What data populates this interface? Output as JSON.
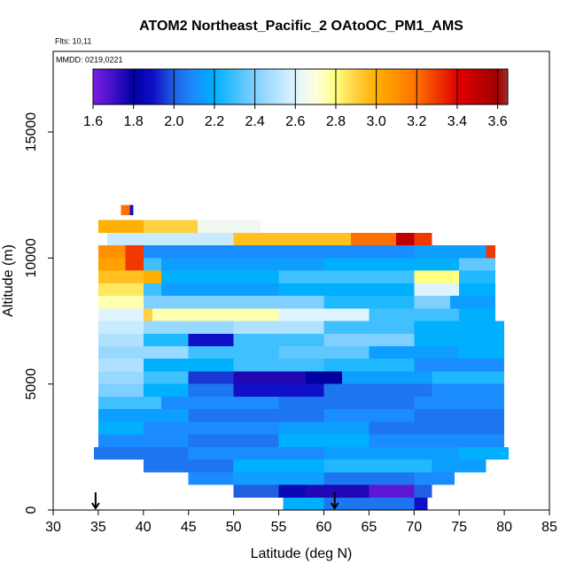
{
  "chart_data": {
    "type": "curtain",
    "title": "ATOM2 Northeast_Pacific_2 OAtoOC_PM1_AMS",
    "flights": "Flts: 10,11",
    "dates": "MMDD: 0219,0221",
    "xlabel": "Latitude (deg N)",
    "ylabel": "Altitude (m)",
    "xlim": [
      30,
      85
    ],
    "ylim": [
      0,
      18200
    ],
    "xticks": [
      30,
      35,
      40,
      45,
      50,
      55,
      60,
      65,
      70,
      75,
      80,
      85
    ],
    "yticks": [
      0,
      5000,
      10000,
      15000
    ],
    "colorbar": {
      "lim": [
        1.6,
        3.65
      ],
      "ticks": [
        1.6,
        1.8,
        {
          "value": 2,
          "label": "2.0"
        },
        2.2,
        2.4,
        2.6,
        2.8,
        {
          "value": 3,
          "label": "3.0"
        },
        3.2,
        3.4,
        3.6
      ],
      "scale": [
        [
          1.6,
          "#7b1fe0"
        ],
        [
          1.7,
          "#4010c8"
        ],
        [
          1.8,
          "#0000a0"
        ],
        [
          1.9,
          "#1010c8"
        ],
        [
          2.0,
          "#2060e0"
        ],
        [
          2.1,
          "#1a8cff"
        ],
        [
          2.2,
          "#00b0ff"
        ],
        [
          2.4,
          "#80d0ff"
        ],
        [
          2.6,
          "#e0f4ff"
        ],
        [
          2.7,
          "#ffffe0"
        ],
        [
          2.8,
          "#ffff80"
        ],
        [
          2.9,
          "#ffd040"
        ],
        [
          3.0,
          "#ffb000"
        ],
        [
          3.2,
          "#ff7000"
        ],
        [
          3.4,
          "#e00000"
        ],
        [
          3.6,
          "#a00000"
        ],
        [
          3.65,
          "#a03030"
        ]
      ]
    },
    "layers": [
      {
        "alt": [
          0,
          500
        ],
        "segments": [
          [
            55.5,
            60,
            2.2
          ],
          [
            60,
            70,
            2.05
          ],
          [
            70,
            71.5,
            1.9
          ]
        ]
      },
      {
        "alt": [
          500,
          1000
        ],
        "segments": [
          [
            50,
            55,
            2.0
          ],
          [
            55,
            58,
            1.85
          ],
          [
            58,
            65,
            1.75
          ],
          [
            65,
            70,
            1.65
          ],
          [
            70,
            72,
            2.0
          ]
        ]
      },
      {
        "alt": [
          1000,
          1500
        ],
        "segments": [
          [
            45,
            50,
            2.1
          ],
          [
            50,
            60,
            2.15
          ],
          [
            60,
            70,
            2.05
          ],
          [
            70,
            74.5,
            2.1
          ]
        ]
      },
      {
        "alt": [
          1500,
          2000
        ],
        "segments": [
          [
            40,
            50,
            2.05
          ],
          [
            50,
            60,
            2.2
          ],
          [
            60,
            72,
            2.25
          ],
          [
            72,
            78,
            2.15
          ]
        ]
      },
      {
        "alt": [
          2000,
          2500
        ],
        "segments": [
          [
            34.5,
            45,
            2.05
          ],
          [
            45,
            60,
            2.1
          ],
          [
            60,
            75,
            2.15
          ],
          [
            75,
            80.5,
            2.2
          ]
        ]
      },
      {
        "alt": [
          2500,
          3000
        ],
        "segments": [
          [
            35,
            45,
            2.1
          ],
          [
            45,
            55,
            2.05
          ],
          [
            55,
            65,
            2.2
          ],
          [
            65,
            80,
            2.1
          ]
        ]
      },
      {
        "alt": [
          3000,
          3500
        ],
        "segments": [
          [
            35,
            40,
            2.2
          ],
          [
            40,
            55,
            2.1
          ],
          [
            55,
            65,
            2.15
          ],
          [
            65,
            80,
            2.05
          ]
        ]
      },
      {
        "alt": [
          3500,
          4000
        ],
        "segments": [
          [
            35,
            45,
            2.15
          ],
          [
            45,
            60,
            2.05
          ],
          [
            60,
            70,
            2.1
          ],
          [
            70,
            80,
            2.05
          ]
        ]
      },
      {
        "alt": [
          4000,
          4500
        ],
        "segments": [
          [
            35,
            42,
            2.3
          ],
          [
            42,
            55,
            2.1
          ],
          [
            55,
            70,
            2.05
          ],
          [
            70,
            80,
            2.1
          ]
        ]
      },
      {
        "alt": [
          4500,
          5000
        ],
        "segments": [
          [
            35,
            40,
            2.4
          ],
          [
            40,
            45,
            2.2
          ],
          [
            45,
            50,
            2.05
          ],
          [
            50,
            60,
            1.9
          ],
          [
            60,
            72,
            2.05
          ],
          [
            72,
            80,
            2.1
          ]
        ]
      },
      {
        "alt": [
          5000,
          5500
        ],
        "segments": [
          [
            35,
            40,
            2.45
          ],
          [
            40,
            45,
            2.3
          ],
          [
            45,
            50,
            1.95
          ],
          [
            50,
            58,
            1.75
          ],
          [
            58,
            62,
            1.8
          ],
          [
            62,
            72,
            2.15
          ],
          [
            72,
            80,
            2.25
          ]
        ]
      },
      {
        "alt": [
          5500,
          6000
        ],
        "segments": [
          [
            35,
            40,
            2.5
          ],
          [
            40,
            50,
            2.2
          ],
          [
            50,
            60,
            2.3
          ],
          [
            60,
            70,
            2.25
          ],
          [
            70,
            80,
            2.1
          ]
        ]
      },
      {
        "alt": [
          6000,
          6500
        ],
        "segments": [
          [
            35,
            45,
            2.45
          ],
          [
            45,
            55,
            2.3
          ],
          [
            55,
            65,
            2.35
          ],
          [
            65,
            75,
            2.15
          ],
          [
            75,
            80,
            2.2
          ]
        ]
      },
      {
        "alt": [
          6500,
          7000
        ],
        "segments": [
          [
            35,
            40,
            2.5
          ],
          [
            40,
            45,
            2.25
          ],
          [
            45,
            50,
            1.9
          ],
          [
            50,
            60,
            2.3
          ],
          [
            60,
            70,
            2.4
          ],
          [
            70,
            80,
            2.2
          ]
        ]
      },
      {
        "alt": [
          7000,
          7500
        ],
        "segments": [
          [
            35,
            40,
            2.55
          ],
          [
            40,
            50,
            2.45
          ],
          [
            50,
            60,
            2.5
          ],
          [
            60,
            70,
            2.3
          ],
          [
            70,
            80,
            2.2
          ]
        ]
      },
      {
        "alt": [
          7500,
          8000
        ],
        "segments": [
          [
            35,
            40,
            2.6
          ],
          [
            40,
            41,
            2.9
          ],
          [
            41,
            55,
            2.75
          ],
          [
            55,
            65,
            2.6
          ],
          [
            65,
            75,
            2.3
          ],
          [
            75,
            79,
            2.2
          ]
        ]
      },
      {
        "alt": [
          8000,
          8500
        ],
        "segments": [
          [
            35,
            40,
            2.75
          ],
          [
            40,
            45,
            2.4
          ],
          [
            45,
            60,
            2.4
          ],
          [
            60,
            70,
            2.25
          ],
          [
            70,
            74,
            2.4
          ],
          [
            74,
            79,
            2.15
          ]
        ]
      },
      {
        "alt": [
          8500,
          9000
        ],
        "segments": [
          [
            35,
            40,
            2.85
          ],
          [
            40,
            42,
            2.3
          ],
          [
            42,
            55,
            2.15
          ],
          [
            55,
            70,
            2.2
          ],
          [
            70,
            75,
            2.6
          ],
          [
            75,
            79,
            2.2
          ]
        ]
      },
      {
        "alt": [
          9000,
          9500
        ],
        "segments": [
          [
            35,
            40,
            2.95
          ],
          [
            40,
            42,
            3.0
          ],
          [
            42,
            55,
            2.2
          ],
          [
            55,
            70,
            2.3
          ],
          [
            70,
            75,
            2.8
          ],
          [
            75,
            79,
            2.25
          ]
        ]
      },
      {
        "alt": [
          9500,
          10000
        ],
        "segments": [
          [
            35,
            38,
            3.05
          ],
          [
            38,
            40,
            3.3
          ],
          [
            40,
            42,
            2.3
          ],
          [
            42,
            60,
            2.15
          ],
          [
            60,
            75,
            2.2
          ],
          [
            75,
            79,
            2.35
          ]
        ]
      },
      {
        "alt": [
          10000,
          10500
        ],
        "segments": [
          [
            35,
            38,
            3.1
          ],
          [
            38,
            40,
            3.3
          ],
          [
            40,
            50,
            2.1
          ],
          [
            50,
            70,
            2.1
          ],
          [
            70,
            78,
            2.15
          ],
          [
            78,
            79,
            3.3
          ]
        ]
      },
      {
        "alt": [
          10500,
          11000
        ],
        "segments": [
          [
            36,
            50,
            2.55
          ],
          [
            50,
            63,
            2.95
          ],
          [
            63,
            68,
            3.2
          ],
          [
            68,
            70,
            3.5
          ],
          [
            70,
            72,
            3.3
          ]
        ]
      },
      {
        "alt": [
          11000,
          11500
        ],
        "segments": [
          [
            35,
            40,
            3.0
          ],
          [
            40,
            46,
            2.9
          ],
          [
            46,
            53,
            2.65
          ]
        ]
      },
      {
        "alt": [
          11700,
          12100
        ],
        "segments": [
          [
            37.5,
            38.5,
            3.2
          ],
          [
            38.5,
            38.9,
            1.9
          ]
        ]
      }
    ],
    "markers": [
      34.7,
      61.2
    ]
  }
}
